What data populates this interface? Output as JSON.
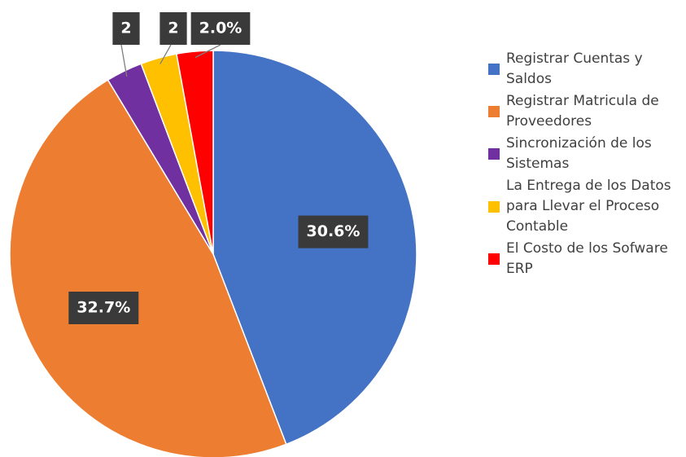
{
  "chart_data": {
    "type": "pie",
    "categories": [
      "Registrar Cuentas y Saldos",
      "Registrar Matricula de Proveedores",
      "Sincronización de los Sistemas",
      "La Entrega de los Datos para Llevar el Proceso Contable",
      "El Costo de los Sofware ERP"
    ],
    "values": [
      30.6,
      32.7,
      2.0,
      2.0,
      2.0
    ],
    "value_labels": [
      "30.6%",
      "32.7%",
      "2",
      "2",
      "2.0%"
    ],
    "colors": [
      "#4472c4",
      "#ed7d31",
      "#7030a0",
      "#ffc000",
      "#ff0000"
    ],
    "legend": "right"
  }
}
